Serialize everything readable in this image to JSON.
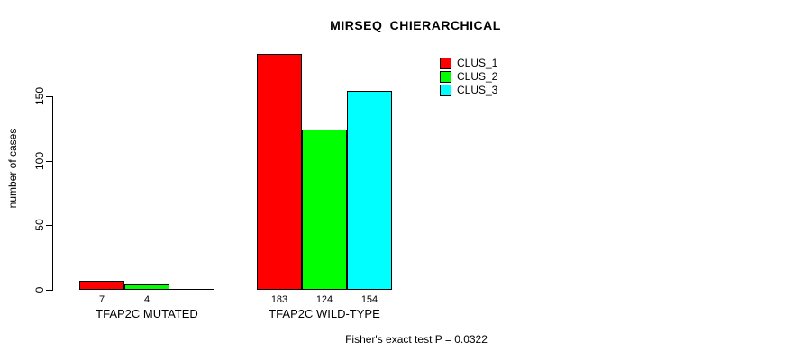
{
  "chart_data": {
    "type": "bar",
    "title": "MIRSEQ_CHIERARCHICAL",
    "categories": [
      "TFAP2C MUTATED",
      "TFAP2C WILD-TYPE"
    ],
    "series": [
      {
        "name": "CLUS_1",
        "color": "#FF0000",
        "values": [
          7,
          183
        ]
      },
      {
        "name": "CLUS_2",
        "color": "#00FF00",
        "values": [
          4,
          124
        ]
      },
      {
        "name": "CLUS_3",
        "color": "#00FFFF",
        "values": [
          0,
          154
        ]
      }
    ],
    "ylabel": "number of cases",
    "xlabel": "",
    "yticks": [
      0,
      50,
      100,
      150
    ],
    "ylim": [
      0,
      190
    ],
    "grid": false,
    "bar_value_labels": true,
    "legend": {
      "position": "top-right",
      "entries": [
        "CLUS_1",
        "CLUS_2",
        "CLUS_3"
      ]
    },
    "annotation": "Fisher's exact test P = 0.0322"
  }
}
